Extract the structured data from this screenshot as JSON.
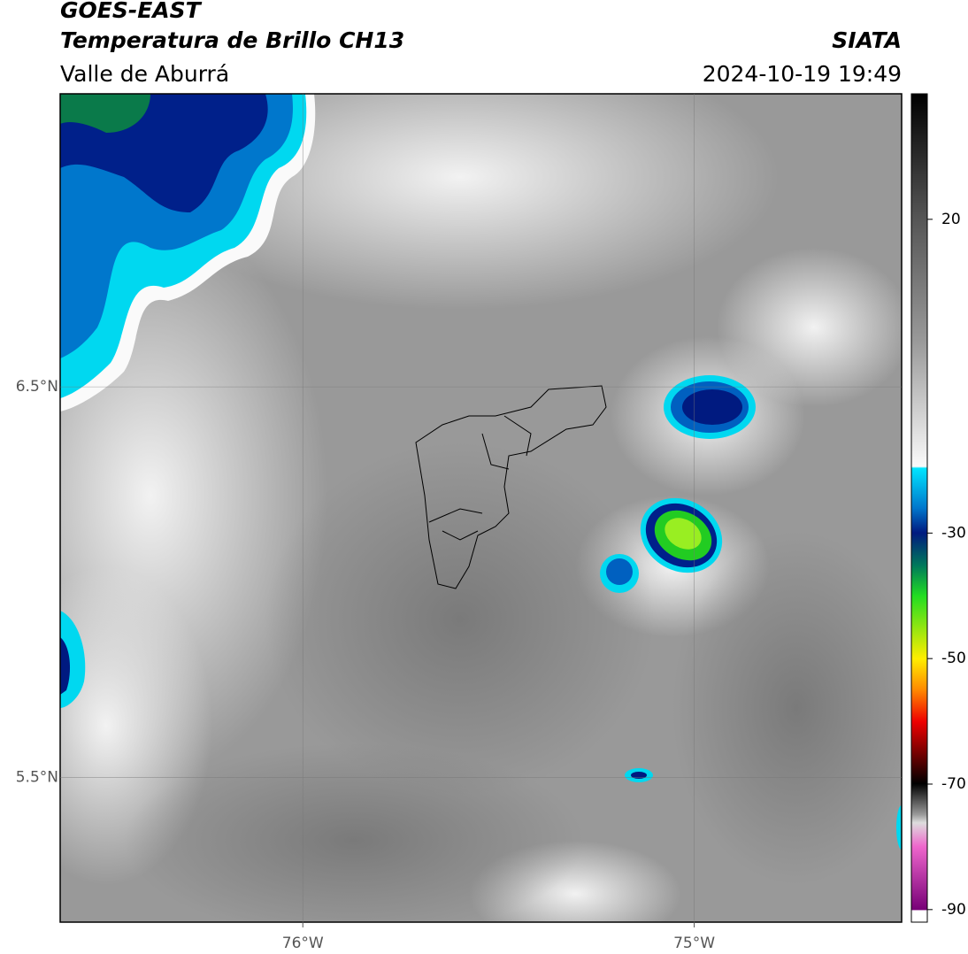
{
  "header": {
    "satellite": "GOES-EAST",
    "product": "Temperatura de Brillo CH13",
    "region": "Valle de Aburrá",
    "source": "SIATA",
    "datetime": "2024-10-19 19:49"
  },
  "map": {
    "lon_range": [
      -76.62,
      -74.47
    ],
    "lat_range": [
      5.13,
      7.25
    ],
    "lon_ticks": [
      {
        "value": -76,
        "label": "76°W"
      },
      {
        "value": -75,
        "label": "75°W"
      }
    ],
    "lat_ticks": [
      {
        "value": 6.5,
        "label": "6.5°N"
      },
      {
        "value": 5.5,
        "label": "5.5°N"
      }
    ]
  },
  "colorbar": {
    "range": [
      -92,
      40
    ],
    "ticks": [
      20,
      -30,
      -50,
      -70,
      -90
    ]
  }
}
